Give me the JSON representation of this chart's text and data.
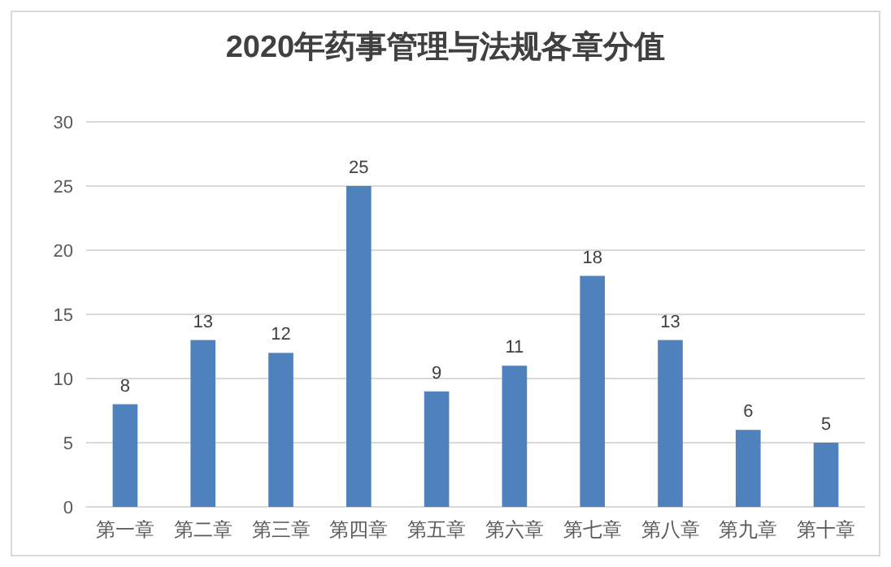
{
  "chart_data": {
    "type": "bar",
    "title": "2020年药事管理与法规各章分值",
    "categories": [
      "第一章",
      "第二章",
      "第三章",
      "第四章",
      "第五章",
      "第六章",
      "第七章",
      "第八章",
      "第九章",
      "第十章"
    ],
    "values": [
      8,
      13,
      12,
      25,
      9,
      11,
      18,
      13,
      6,
      5
    ],
    "color": "#4f81bd",
    "ylim": [
      0,
      30
    ],
    "yticks": [
      0,
      5,
      10,
      15,
      20,
      25,
      30
    ],
    "grid": "y",
    "data_labels": true
  }
}
